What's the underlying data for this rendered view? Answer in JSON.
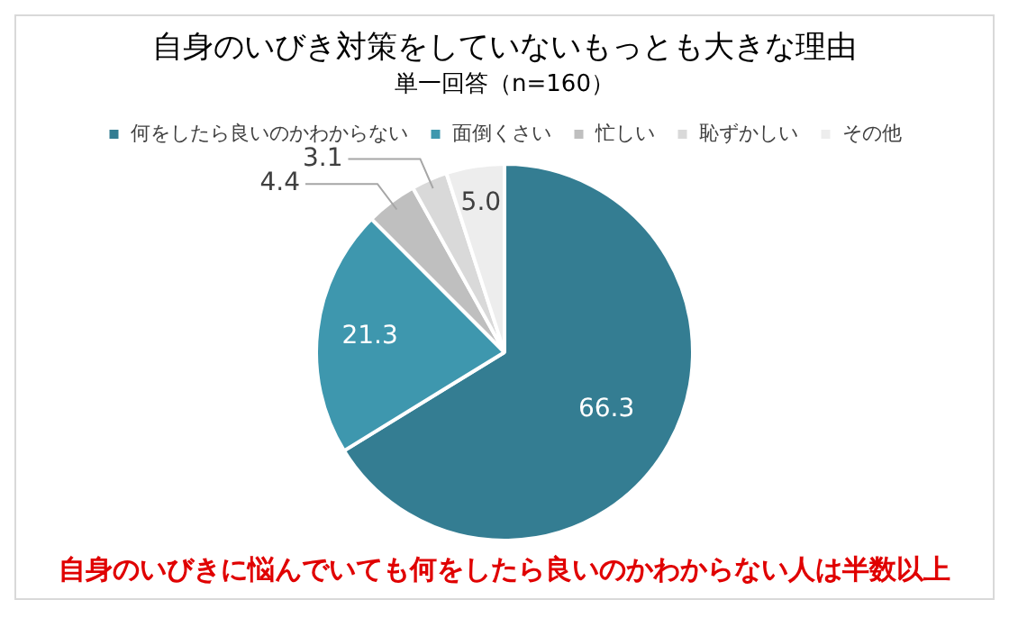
{
  "chart_data": {
    "type": "pie",
    "title": "自身のいびき対策をしていないもっとも大きな理由",
    "subtitle": "単一回答（n=160）",
    "categories": [
      "何をしたら良いのかわからない",
      "面倒くさい",
      "忙しい",
      "恥ずかしい",
      "その他"
    ],
    "values": [
      66.3,
      21.3,
      4.4,
      3.1,
      5.0
    ],
    "colors": [
      "#347d92",
      "#3e97ae",
      "#bfbfbf",
      "#d9d9d9",
      "#ededed"
    ],
    "value_labels": [
      "66.3",
      "21.3",
      "4.4",
      "3.1",
      "5.0"
    ],
    "legend": "top",
    "annotations": [
      "自身のいびきに悩んでいても何をしたら良いのかわからない人は半数以上"
    ]
  }
}
